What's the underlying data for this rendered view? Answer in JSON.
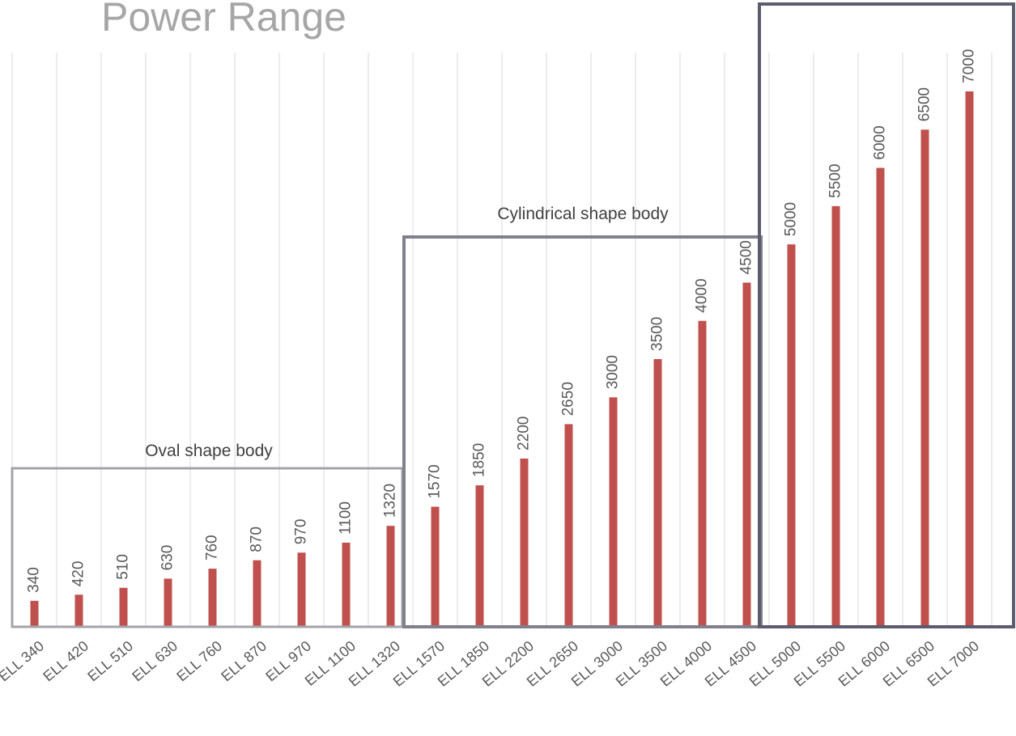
{
  "chart_data": {
    "type": "bar",
    "title": "Power Range",
    "categories": [
      "ELL 340",
      "ELL 420",
      "ELL 510",
      "ELL 630",
      "ELL 760",
      "ELL 870",
      "ELL 970",
      "ELL 1100",
      "ELL 1320",
      "ELL 1570",
      "ELL 1850",
      "ELL 2200",
      "ELL 2650",
      "ELL 3000",
      "ELL 3500",
      "ELL 4000",
      "ELL 4500",
      "ELL 5000",
      "ELL 5500",
      "ELL 6000",
      "ELL 6500",
      "ELL 7000"
    ],
    "values": [
      340,
      420,
      510,
      630,
      760,
      870,
      970,
      1100,
      1320,
      1570,
      1850,
      2200,
      2650,
      3000,
      3500,
      4000,
      4500,
      5000,
      5500,
      6000,
      6500,
      7000
    ],
    "color": "#c0504d",
    "annotations": [
      "Oval shape body",
      "Cylindrical shape body"
    ]
  }
}
